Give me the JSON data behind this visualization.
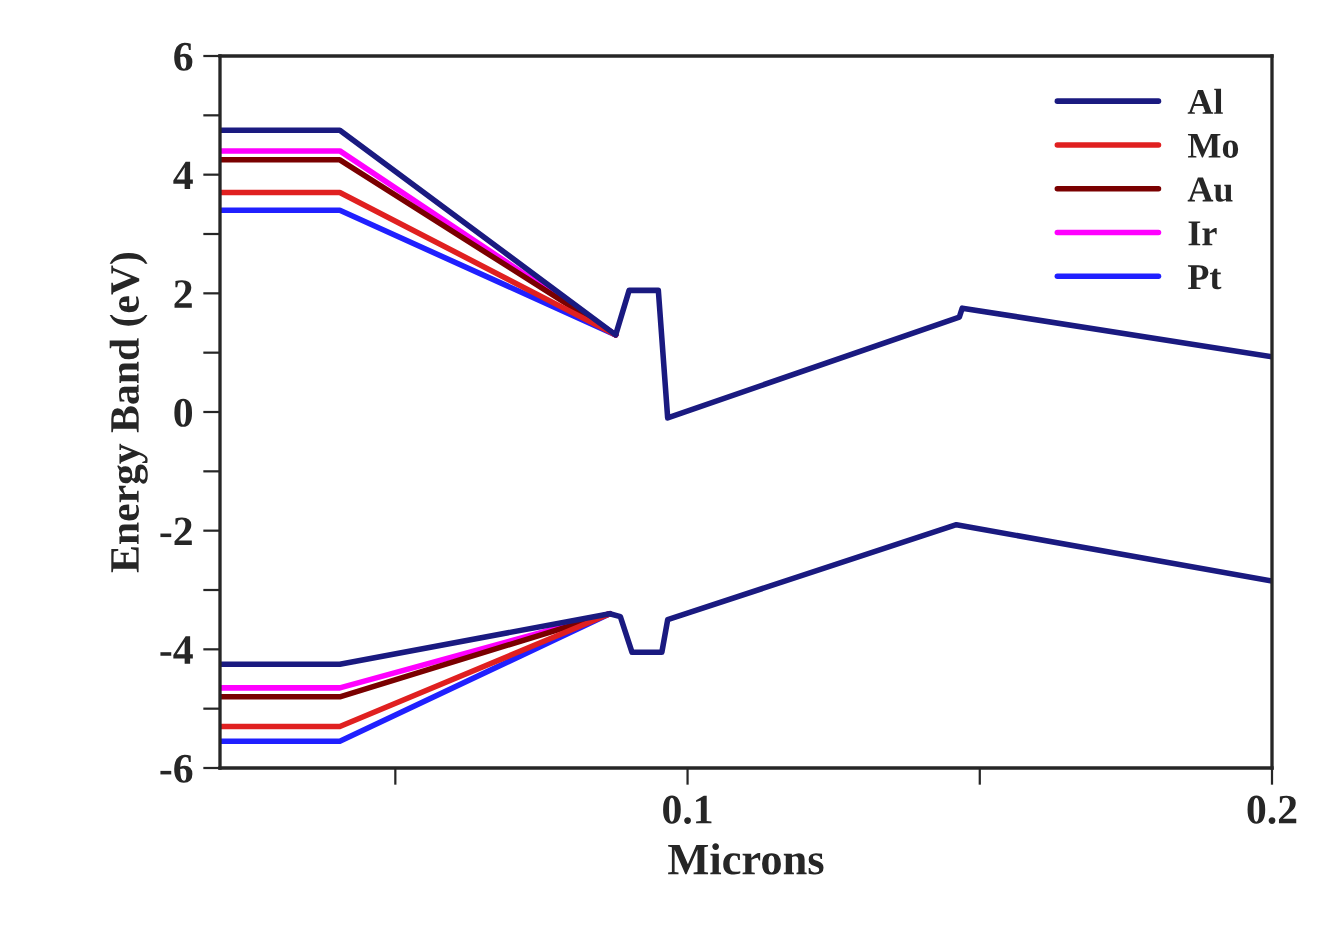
{
  "chart_data": {
    "type": "line",
    "xlabel": "Microns",
    "ylabel": "Energy Band (eV)",
    "xlim": [
      0.02,
      0.2
    ],
    "ylim": [
      -6,
      6
    ],
    "xticks": [
      {
        "value": 0.05,
        "label": null
      },
      0.1,
      {
        "value": 0.15,
        "label": null
      },
      0.2
    ],
    "yticks": [
      -6,
      {
        "value": -5,
        "label": null
      },
      -4,
      {
        "value": -3,
        "label": null
      },
      -2,
      {
        "value": -1,
        "label": null
      },
      0,
      {
        "value": 1,
        "label": null
      },
      2,
      {
        "value": 3,
        "label": null
      },
      4,
      {
        "value": 5,
        "label": null
      },
      6
    ],
    "legend": "top right",
    "grid": false,
    "marker": "none",
    "line_style": "solid",
    "series": [
      {
        "name": "Al",
        "color": "#1a1a80",
        "x": [
          0.02,
          0.0405,
          0.0877,
          0.09,
          0.095,
          0.0966,
          0.1465,
          0.147,
          0.2,
          null,
          0.02,
          0.0405,
          0.0867,
          0.0885,
          0.0905,
          0.0956,
          0.0966,
          0.146,
          0.2
        ],
        "values": [
          4.75,
          4.75,
          1.3,
          2.05,
          2.05,
          -0.1,
          1.6,
          1.75,
          0.93,
          null,
          -4.25,
          -4.25,
          -3.4,
          -3.45,
          -4.05,
          -4.05,
          -3.5,
          -1.9,
          -2.85
        ]
      },
      {
        "name": "Mo",
        "color": "#e02020",
        "x": [
          0.02,
          0.0405,
          0.0877,
          null,
          0.02,
          0.0405,
          0.0867
        ],
        "values": [
          3.7,
          3.7,
          1.3,
          null,
          -5.3,
          -5.3,
          -3.4
        ]
      },
      {
        "name": "Au",
        "color": "#7a0000",
        "x": [
          0.02,
          0.0405,
          0.0877,
          null,
          0.02,
          0.0405,
          0.0867
        ],
        "values": [
          4.25,
          4.25,
          1.3,
          null,
          -4.8,
          -4.8,
          -3.4
        ]
      },
      {
        "name": "Ir",
        "color": "#ff00ff",
        "x": [
          0.02,
          0.0405,
          0.0877,
          null,
          0.02,
          0.0405,
          0.0867
        ],
        "values": [
          4.4,
          4.4,
          1.3,
          null,
          -4.65,
          -4.65,
          -3.4
        ]
      },
      {
        "name": "Pt",
        "color": "#2020ff",
        "x": [
          0.02,
          0.0405,
          0.0877,
          null,
          0.02,
          0.0405,
          0.0867
        ],
        "values": [
          3.4,
          3.4,
          1.3,
          null,
          -5.55,
          -5.55,
          -3.4
        ]
      }
    ]
  }
}
